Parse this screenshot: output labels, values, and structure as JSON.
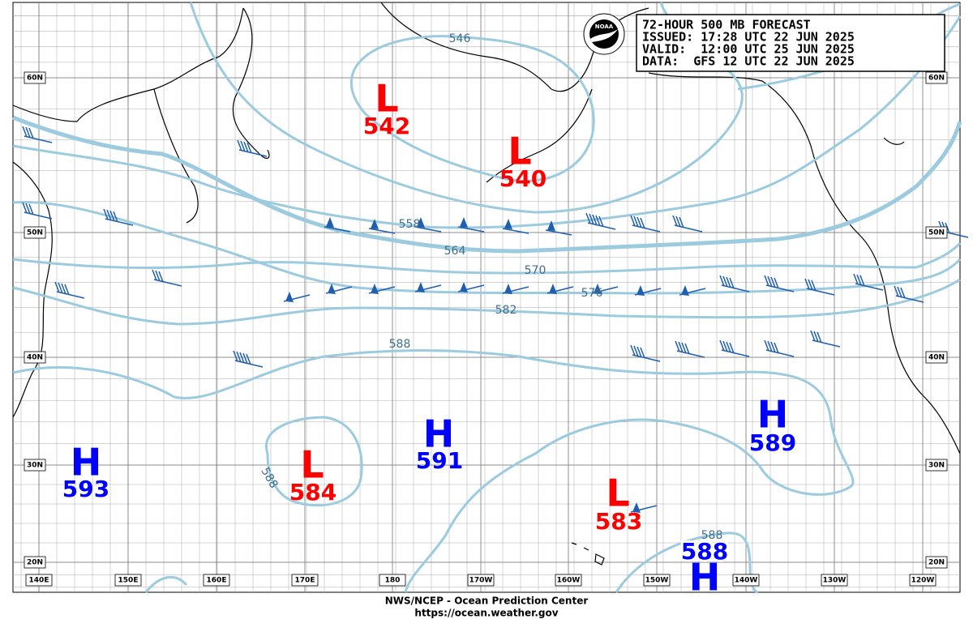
{
  "header": {
    "lines": [
      "72-HOUR 500 MB FORECAST",
      "ISSUED: 17:28 UTC 22 JUN 2025",
      "VALID:  12:00 UTC 25 JUN 2025",
      "DATA:  GFS 12 UTC 22 JUN 2025"
    ],
    "logo": "NOAA"
  },
  "latitude_labels": [
    "60N",
    "50N",
    "40N",
    "30N",
    "20N"
  ],
  "longitude_labels": [
    "140E",
    "150E",
    "160E",
    "170E",
    "180",
    "170W",
    "160W",
    "150W",
    "140W",
    "130W",
    "120W"
  ],
  "pressure_centers": [
    {
      "symbol": "L",
      "value": "542"
    },
    {
      "symbol": "L",
      "value": "540"
    },
    {
      "symbol": "H",
      "value": "593"
    },
    {
      "symbol": "L",
      "value": "584"
    },
    {
      "symbol": "H",
      "value": "591"
    },
    {
      "symbol": "L",
      "value": "583"
    },
    {
      "symbol": "H",
      "value": "589"
    },
    {
      "symbol": "H",
      "value": "588"
    }
  ],
  "contour_labels": [
    "546",
    "558",
    "564",
    "570",
    "576",
    "582",
    "588",
    "588",
    "588"
  ],
  "footer": {
    "agency": "NWS/NCEP - Ocean Prediction Center",
    "url": "https://ocean.weather.gov"
  }
}
